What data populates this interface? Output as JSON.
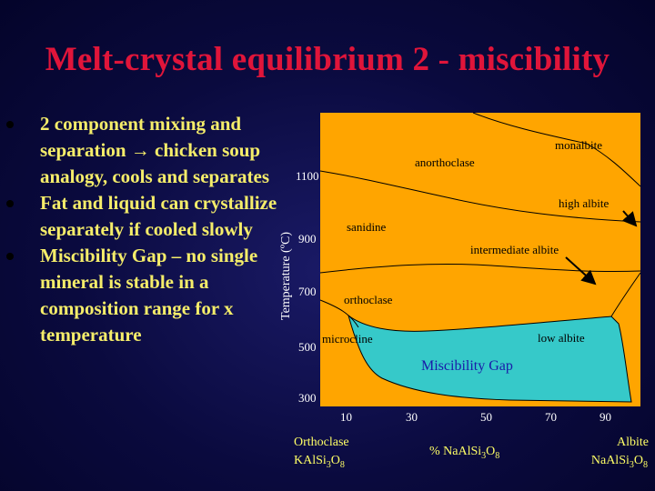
{
  "slide": {
    "title": "Melt-crystal equilibrium 2 - miscibility"
  },
  "bullets": [
    {
      "text": "2 component mixing and separation → chicken soup analogy, cools and separates"
    },
    {
      "text": "Fat and liquid can crystallize separately if cooled slowly"
    },
    {
      "text": "Miscibility Gap – no single mineral is stable in a  composition range for x temperature"
    }
  ],
  "diagram": {
    "y_axis_label": "Temperature (ºC)",
    "y_ticks": [
      "1100",
      "900",
      "700",
      "500",
      "300"
    ],
    "x_ticks": [
      "10",
      "30",
      "50",
      "70",
      "90"
    ],
    "left_end": {
      "name": "Orthoclase",
      "formula_a": "KAlSi",
      "sub_a": "3",
      "formula_b": "O",
      "sub_b": "8"
    },
    "right_end": {
      "name": "Albite",
      "formula_a": "NaAlSi",
      "sub_a": "3",
      "formula_b": "O",
      "sub_b": "8"
    },
    "x_axis_label": {
      "text_a": "% NaAlSi",
      "sub_a": "3",
      "text_b": "O",
      "sub_b": "8"
    },
    "regions": {
      "monalbite": "monalbite",
      "anorthoclase": "anorthoclase",
      "high_albite": "high albite",
      "sanidine": "sanidine",
      "intermediate_albite": "intermediate albite",
      "orthoclase": "orthoclase",
      "microcline": "microcline",
      "low_albite": "low albite",
      "miscibility_gap": "Miscibility Gap"
    },
    "colors": {
      "field": "#ffa500",
      "gap": "#36c9c9",
      "boundary": "#000000",
      "gap_label": "#1a1aa8",
      "axis_text": "#ffffff",
      "end_text": "#ffff66"
    }
  }
}
